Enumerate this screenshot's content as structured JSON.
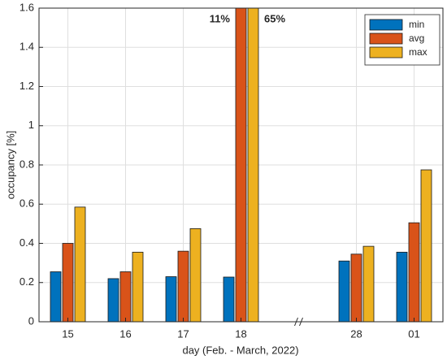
{
  "chart_data": {
    "type": "bar",
    "xlabel": "day (Feb. - March, 2022)",
    "ylabel": "occupancy [%]",
    "categories": [
      "15",
      "16",
      "17",
      "18",
      null,
      "28",
      "01"
    ],
    "series": [
      {
        "name": "min",
        "color": "#0072bd",
        "values": [
          0.255,
          0.22,
          0.23,
          0.228,
          null,
          0.31,
          0.355
        ]
      },
      {
        "name": "avg",
        "color": "#d95319",
        "values": [
          0.4,
          0.255,
          0.36,
          11,
          null,
          0.345,
          0.505
        ],
        "value_labels": [
          null,
          null,
          null,
          "11%",
          null,
          null,
          null
        ]
      },
      {
        "name": "max",
        "color": "#edb120",
        "values": [
          0.585,
          0.355,
          0.475,
          65,
          null,
          0.385,
          0.775
        ],
        "value_labels": [
          null,
          null,
          null,
          "65%",
          null,
          null,
          null
        ]
      }
    ],
    "ylim": [
      0,
      1.6
    ],
    "yticks": [
      0,
      0.2,
      0.4,
      0.6,
      0.8,
      1,
      1.2,
      1.4,
      1.6
    ],
    "grid": true,
    "legend": "top-right"
  }
}
